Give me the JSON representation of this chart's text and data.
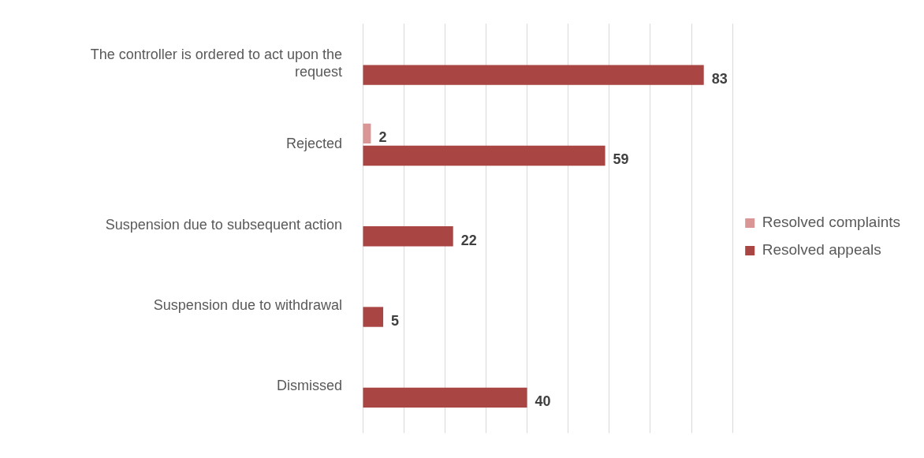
{
  "chart_data": {
    "type": "bar",
    "orientation": "horizontal",
    "categories": [
      "The controller is ordered to act upon the request",
      "Rejected",
      "Suspension due to subsequent action",
      "Suspension due to withdrawal",
      "Dismissed"
    ],
    "series": [
      {
        "name": "Resolved complaints",
        "color": "#d99694",
        "values": [
          null,
          2,
          null,
          null,
          null
        ]
      },
      {
        "name": "Resolved appeals",
        "color": "#a94542",
        "values": [
          83,
          59,
          22,
          5,
          40
        ]
      }
    ],
    "xlim": [
      0,
      90
    ],
    "xticks": [
      {
        "value": 0,
        "label": null
      },
      {
        "value": 10,
        "label": null
      },
      {
        "value": 20,
        "label": null
      },
      {
        "value": 30,
        "label": null
      },
      {
        "value": 40,
        "label": null
      },
      {
        "value": 50,
        "label": null
      },
      {
        "value": 60,
        "label": null
      },
      {
        "value": 70,
        "label": null
      },
      {
        "value": 80,
        "label": null
      },
      {
        "value": 90,
        "label": null
      }
    ],
    "tick_labels": "y",
    "grid": "x",
    "legend": "right",
    "data_labels": true
  }
}
